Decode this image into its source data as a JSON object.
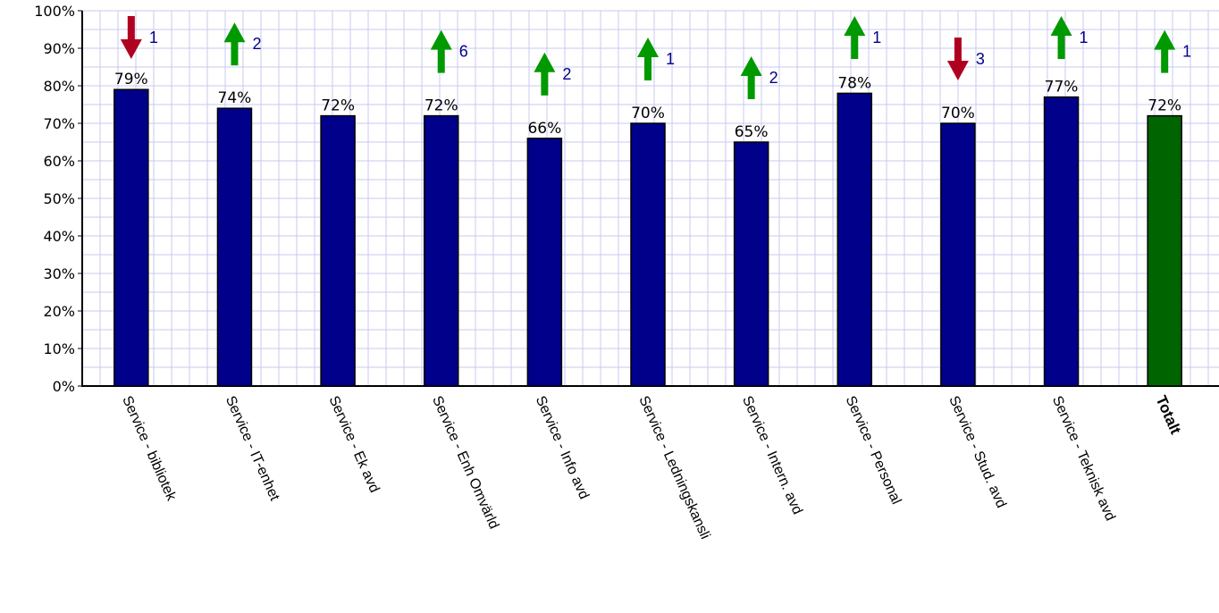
{
  "chart_data": {
    "type": "bar",
    "categories": [
      "Service - bibliotek",
      "Service - IT-enhet",
      "Service - Ek avd",
      "Service - Enh Omvärld",
      "Service - Info avd",
      "Service - Ledningskansli",
      "Service - Intern. avd",
      "Service - Personal",
      "Service - Stud. avd",
      "Service - Teknisk avd",
      "Totalt"
    ],
    "values": [
      79,
      74,
      72,
      72,
      66,
      70,
      65,
      78,
      70,
      77,
      72
    ],
    "value_labels": [
      "79%",
      "74%",
      "72%",
      "72%",
      "66%",
      "70%",
      "65%",
      "78%",
      "70%",
      "77%",
      "72%"
    ],
    "trends": [
      {
        "direction": "down",
        "value": "1"
      },
      {
        "direction": "up",
        "value": "2"
      },
      null,
      {
        "direction": "up",
        "value": "6"
      },
      {
        "direction": "up",
        "value": "2"
      },
      {
        "direction": "up",
        "value": "1"
      },
      {
        "direction": "up",
        "value": "2"
      },
      {
        "direction": "up",
        "value": "1"
      },
      {
        "direction": "down",
        "value": "3"
      },
      {
        "direction": "up",
        "value": "1"
      },
      {
        "direction": "up",
        "value": "1"
      }
    ],
    "y_ticks": [
      "0%",
      "10%",
      "20%",
      "30%",
      "40%",
      "50%",
      "60%",
      "70%",
      "80%",
      "90%",
      "100%"
    ],
    "ylim": [
      0,
      100
    ],
    "grid": true,
    "title": "",
    "xlabel": "",
    "ylabel": "",
    "colors": {
      "bar": "#00008b",
      "total_bar": "#006400",
      "grid": "#c8c8f0",
      "up_arrow": "#009900",
      "down_arrow": "#b00020",
      "trend_number": "#00008b"
    }
  }
}
